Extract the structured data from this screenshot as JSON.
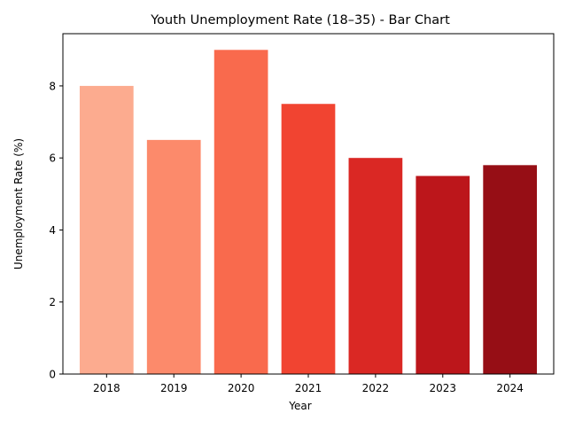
{
  "chart_data": {
    "type": "bar",
    "title": "Youth Unemployment Rate (18–35) - Bar Chart",
    "xlabel": "Year",
    "ylabel": "Unemployment Rate (%)",
    "categories": [
      "2018",
      "2019",
      "2020",
      "2021",
      "2022",
      "2023",
      "2024"
    ],
    "values": [
      8.0,
      6.5,
      9.0,
      7.5,
      6.0,
      5.5,
      5.8
    ],
    "colors": [
      "#fcab8f",
      "#fc8a6b",
      "#f96a4d",
      "#f14431",
      "#da2824",
      "#bc161b",
      "#960e15"
    ],
    "ylim": [
      0,
      9.45
    ],
    "yticks": [
      "0",
      "2",
      "4",
      "6",
      "8"
    ],
    "grid": false,
    "legend": "none"
  }
}
